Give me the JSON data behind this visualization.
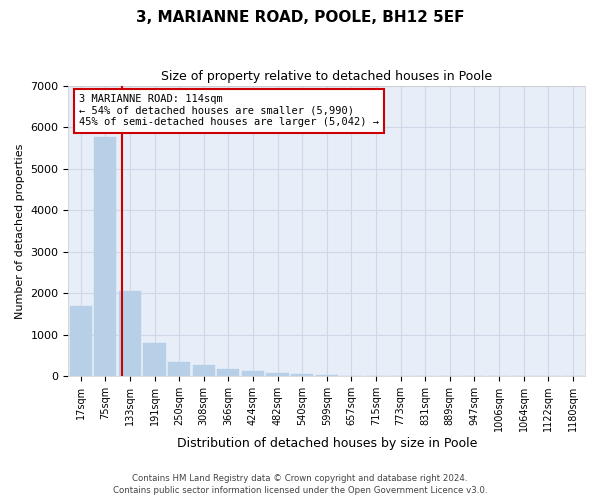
{
  "title": "3, MARIANNE ROAD, POOLE, BH12 5EF",
  "subtitle": "Size of property relative to detached houses in Poole",
  "xlabel": "Distribution of detached houses by size in Poole",
  "ylabel": "Number of detached properties",
  "bins": [
    "17sqm",
    "75sqm",
    "133sqm",
    "191sqm",
    "250sqm",
    "308sqm",
    "366sqm",
    "424sqm",
    "482sqm",
    "540sqm",
    "599sqm",
    "657sqm",
    "715sqm",
    "773sqm",
    "831sqm",
    "889sqm",
    "947sqm",
    "1006sqm",
    "1064sqm",
    "1122sqm",
    "1180sqm"
  ],
  "values": [
    1700,
    5750,
    2050,
    800,
    350,
    280,
    170,
    130,
    80,
    60,
    30,
    15,
    5,
    3,
    2,
    1,
    1,
    1,
    0,
    0,
    0
  ],
  "bar_color": "#b8cfe8",
  "bar_edge_color": "#b8cfe8",
  "grid_color": "#d0d8e8",
  "bg_color": "#e8eef8",
  "red_line_color": "#cc0000",
  "annotation_line1": "3 MARIANNE ROAD: 114sqm",
  "annotation_line2": "← 54% of detached houses are smaller (5,990)",
  "annotation_line3": "45% of semi-detached houses are larger (5,042) →",
  "annotation_box_color": "#ffffff",
  "annotation_border_color": "#cc0000",
  "ylim": [
    0,
    7000
  ],
  "yticks": [
    0,
    1000,
    2000,
    3000,
    4000,
    5000,
    6000,
    7000
  ],
  "footer1": "Contains HM Land Registry data © Crown copyright and database right 2024.",
  "footer2": "Contains public sector information licensed under the Open Government Licence v3.0."
}
